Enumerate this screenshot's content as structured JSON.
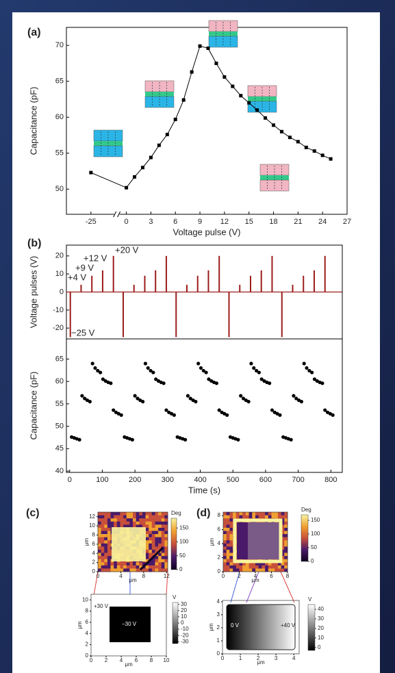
{
  "chart_data": [
    {
      "type": "line",
      "panel_label": "(a)",
      "xlabel": "Voltage pulse (V)",
      "ylabel": "Capacitance (pF)",
      "color": "#000000",
      "x": [
        -25,
        0,
        1,
        2,
        3,
        4,
        5,
        6,
        7,
        8,
        9,
        10,
        11,
        12,
        13,
        14,
        15,
        16,
        17,
        18,
        19,
        20,
        21,
        22,
        23,
        24,
        25
      ],
      "values": [
        52.3,
        50.2,
        51.7,
        53.0,
        54.4,
        56.1,
        57.6,
        59.7,
        62.4,
        66.3,
        69.9,
        69.6,
        67.5,
        65.6,
        64.3,
        63.0,
        62.0,
        61.0,
        59.9,
        58.9,
        58.0,
        57.2,
        56.6,
        55.8,
        55.3,
        54.7,
        54.2
      ],
      "xlim": [
        -28,
        27
      ],
      "xbreak": [
        -22,
        -1
      ],
      "xticks": [
        -25,
        0,
        3,
        6,
        9,
        12,
        15,
        18,
        21,
        24,
        27
      ],
      "ylim": [
        46.5,
        72.5
      ],
      "yticks": [
        50,
        55,
        60,
        65,
        70
      ]
    },
    {
      "type": "stem",
      "panel_label": "(b)",
      "ylabel": "Voltage pulses (V)",
      "color": "#9b1b1b",
      "x": [
        2,
        35,
        68,
        101,
        134,
        164,
        197,
        230,
        263,
        296,
        326,
        359,
        392,
        425,
        458,
        488,
        521,
        554,
        587,
        620,
        650,
        683,
        716,
        749,
        782
      ],
      "values": [
        -25,
        4,
        9,
        12,
        20,
        -25,
        4,
        9,
        12,
        20,
        -25,
        4,
        9,
        12,
        20,
        -25,
        4,
        9,
        12,
        20,
        -25,
        4,
        9,
        12,
        20
      ],
      "annotations": [
        "+20 V",
        "+12 V",
        "+9 V",
        "+4 V",
        "−25 V"
      ],
      "xlim": [
        -10,
        835
      ],
      "ylim": [
        -26,
        26
      ],
      "yticks": [
        -20,
        -10,
        0,
        10,
        20
      ]
    },
    {
      "type": "scatter",
      "xlabel": "Time (s)",
      "ylabel": "Capacitance (pF)",
      "color": "#000000",
      "x": [
        6,
        14,
        22,
        30,
        38,
        46,
        54,
        62,
        70,
        78,
        86,
        94,
        102,
        110,
        118,
        126,
        134,
        142,
        150,
        158,
        168,
        176,
        184,
        192,
        200,
        208,
        216,
        224,
        232,
        240,
        248,
        256,
        264,
        272,
        280,
        288,
        296,
        304,
        312,
        320,
        330,
        338,
        346,
        354,
        362,
        370,
        378,
        386,
        394,
        402,
        410,
        418,
        426,
        434,
        442,
        450,
        458,
        466,
        474,
        482,
        492,
        500,
        508,
        516,
        524,
        532,
        540,
        548,
        556,
        564,
        572,
        580,
        588,
        596,
        604,
        612,
        620,
        628,
        636,
        644,
        654,
        662,
        670,
        678,
        686,
        694,
        702,
        710,
        718,
        726,
        734,
        742,
        750,
        758,
        766,
        774,
        782,
        790,
        798,
        806
      ],
      "values": [
        47.6,
        47.4,
        47.2,
        47.0,
        56.8,
        56.2,
        55.8,
        55.5,
        64.0,
        63.0,
        62.4,
        62.0,
        60.5,
        60.1,
        59.8,
        59.6,
        53.6,
        53.1,
        52.8,
        52.5,
        47.6,
        47.4,
        47.2,
        47.0,
        56.8,
        56.2,
        55.8,
        55.5,
        64.0,
        63.0,
        62.4,
        62.0,
        60.5,
        60.1,
        59.8,
        59.6,
        53.6,
        53.1,
        52.8,
        52.5,
        47.6,
        47.4,
        47.2,
        47.0,
        56.8,
        56.2,
        55.8,
        55.5,
        64.0,
        63.0,
        62.4,
        62.0,
        60.5,
        60.1,
        59.8,
        59.6,
        53.6,
        53.1,
        52.8,
        52.5,
        47.6,
        47.4,
        47.2,
        47.0,
        56.8,
        56.2,
        55.8,
        55.5,
        64.0,
        63.0,
        62.4,
        62.0,
        60.5,
        60.1,
        59.8,
        59.6,
        53.6,
        53.1,
        52.8,
        52.5,
        47.6,
        47.4,
        47.2,
        47.0,
        56.8,
        56.2,
        55.8,
        55.5,
        64.0,
        63.0,
        62.4,
        62.0,
        60.5,
        60.1,
        59.8,
        59.6,
        53.6,
        53.1,
        52.8,
        52.5
      ],
      "xlim": [
        -10,
        835
      ],
      "xticks": [
        0,
        100,
        200,
        300,
        400,
        500,
        600,
        700,
        800
      ],
      "ylim": [
        39.7,
        69.5
      ],
      "yticks": [
        40,
        45,
        50,
        55,
        60,
        65
      ]
    },
    {
      "type": "heatmap",
      "panel_label": "(c)",
      "xlabel": "μm",
      "ylabel": "μm",
      "colorbar_title": "Deg",
      "colormap": [
        "#100020",
        "#4a1a6a",
        "#c8503a",
        "#f0a030",
        "#f8f4a0"
      ],
      "xlim": [
        0,
        12.2
      ],
      "xticks": [
        0,
        4,
        8,
        12
      ],
      "ylim": [
        0,
        13
      ],
      "yticks": [
        0,
        2,
        4,
        6,
        8,
        10,
        12
      ],
      "colorbar_lim": [
        0,
        185
      ],
      "colorbar_ticks": [
        0,
        50,
        100,
        150
      ]
    },
    {
      "type": "heatmap",
      "xlabel": "μm",
      "ylabel": "μm",
      "colorbar_title": "V",
      "annotations": [
        "+30 V",
        "−30 V"
      ],
      "colormap": [
        "#000000",
        "#ffffff"
      ],
      "xlim": [
        0,
        10
      ],
      "xticks": [
        0,
        2,
        4,
        6,
        8,
        10
      ],
      "ylim": [
        0,
        11
      ],
      "yticks": [
        0,
        2,
        4,
        6,
        8,
        10
      ],
      "colorbar_lim": [
        -33,
        33
      ],
      "colorbar_ticks": [
        -30,
        -20,
        -10,
        0,
        10,
        20,
        30
      ]
    },
    {
      "type": "heatmap",
      "panel_label": "(d)",
      "xlabel": "μm",
      "ylabel": "μm",
      "colorbar_title": "Deg",
      "colormap": [
        "#100020",
        "#4a1a6a",
        "#c8503a",
        "#f0a030",
        "#f8f4a0"
      ],
      "xlim": [
        0,
        8
      ],
      "xticks": [
        0,
        2,
        4,
        6,
        8
      ],
      "ylim": [
        0,
        8.5
      ],
      "yticks": [
        0,
        2,
        4,
        6,
        8
      ],
      "colorbar_lim": [
        0,
        170
      ],
      "colorbar_ticks": [
        0,
        50,
        100,
        150
      ]
    },
    {
      "type": "heatmap",
      "xlabel": "μm",
      "ylabel": "μm",
      "colorbar_title": "V",
      "annotations": [
        "0 V",
        "+40 V"
      ],
      "colormap": [
        "#000000",
        "#ffffff"
      ],
      "xlim": [
        0,
        4.3
      ],
      "xticks": [
        0,
        1,
        2,
        3,
        4
      ],
      "ylim": [
        0,
        4.1
      ],
      "yticks": [
        0,
        1,
        2,
        3,
        4
      ],
      "colorbar_lim": [
        -3,
        45
      ],
      "colorbar_ticks": [
        0,
        10,
        20,
        30,
        40
      ]
    }
  ]
}
